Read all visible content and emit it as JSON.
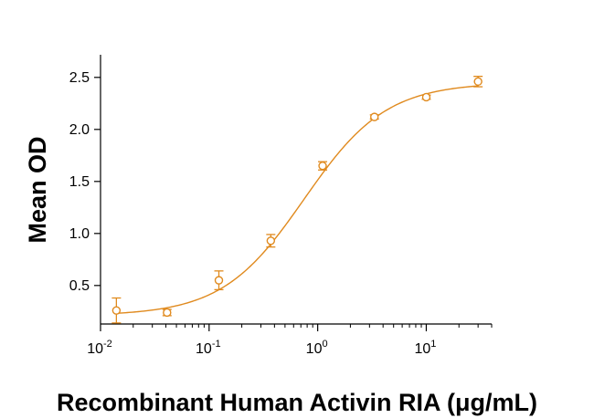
{
  "chart_data": {
    "type": "scatter",
    "title": "",
    "xlabel": "Recombinant Human Activin RIA (μg/mL)",
    "ylabel": "Mean OD",
    "xscale": "log",
    "xlim": [
      0.01,
      40
    ],
    "ylim": [
      0.13,
      2.7
    ],
    "x_ticks": [
      {
        "value": 0.01,
        "base": "10",
        "exp": "-2"
      },
      {
        "value": 0.1,
        "base": "10",
        "exp": "-1"
      },
      {
        "value": 1,
        "base": "10",
        "exp": "0"
      },
      {
        "value": 10,
        "base": "10",
        "exp": "1"
      }
    ],
    "y_ticks": [
      {
        "value": 0.5,
        "label": "0.5"
      },
      {
        "value": 1.0,
        "label": "1.0"
      },
      {
        "value": 1.5,
        "label": "1.5"
      },
      {
        "value": 2.0,
        "label": "2.0"
      },
      {
        "value": 2.5,
        "label": "2.5"
      }
    ],
    "color": "#e08a1e",
    "series": [
      {
        "name": "Mean OD",
        "points": [
          {
            "x": 0.014,
            "y": 0.26,
            "err": 0.12
          },
          {
            "x": 0.041,
            "y": 0.24,
            "err": 0.03
          },
          {
            "x": 0.123,
            "y": 0.55,
            "err": 0.09
          },
          {
            "x": 0.37,
            "y": 0.93,
            "err": 0.06
          },
          {
            "x": 1.11,
            "y": 1.65,
            "err": 0.04
          },
          {
            "x": 3.33,
            "y": 2.12,
            "err": 0.02
          },
          {
            "x": 10,
            "y": 2.31,
            "err": 0.02
          },
          {
            "x": 30,
            "y": 2.46,
            "err": 0.05
          }
        ]
      }
    ],
    "fit": {
      "type": "4PL",
      "bottom": 0.21,
      "top": 2.45,
      "ec50": 0.75,
      "hill": 1.15
    }
  }
}
